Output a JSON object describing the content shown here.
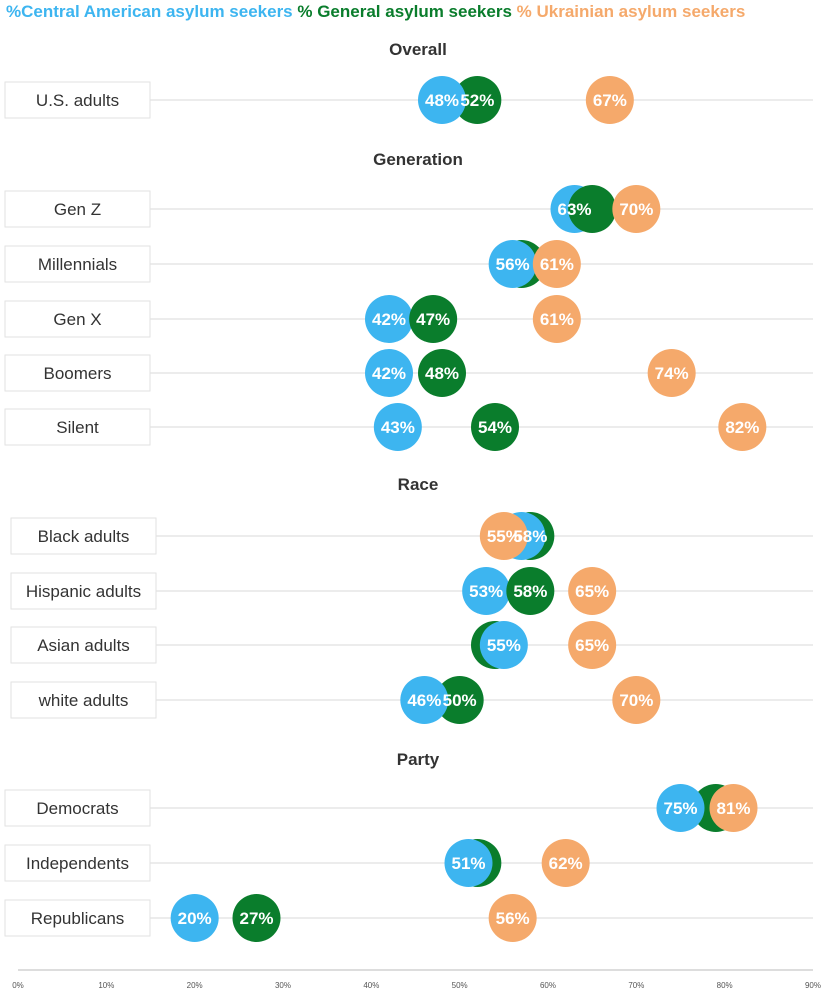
{
  "chart_data": {
    "type": "scatter",
    "title": "",
    "xlabel": "",
    "ylabel": "",
    "xlim": [
      0,
      90
    ],
    "x_ticks": [
      "0%",
      "10%",
      "20%",
      "30%",
      "40%",
      "50%",
      "60%",
      "70%",
      "80%",
      "90%"
    ],
    "legend": [
      {
        "key": "central",
        "label": "%Central American asylum seekers",
        "color": "#3db5f0"
      },
      {
        "key": "general",
        "label": "% General asylum seekers",
        "color": "#0a7d2c"
      },
      {
        "key": "ukrainian",
        "label": "% Ukrainian asylum seekers",
        "color": "#f5a96b"
      }
    ],
    "groups": [
      {
        "title": "Overall",
        "rows": [
          {
            "label": "U.S. adults",
            "central": 48,
            "general": 52,
            "ukrainian": 67
          }
        ]
      },
      {
        "title": "Generation",
        "rows": [
          {
            "label": "Gen Z",
            "central": 63,
            "general": 65,
            "ukrainian": 70
          },
          {
            "label": "Millennials",
            "central": 56,
            "general": 57,
            "ukrainian": 61
          },
          {
            "label": "Gen X",
            "central": 42,
            "general": 47,
            "ukrainian": 61
          },
          {
            "label": "Boomers",
            "central": 42,
            "general": 48,
            "ukrainian": 74
          },
          {
            "label": "Silent",
            "central": 43,
            "general": 54,
            "ukrainian": 82
          }
        ]
      },
      {
        "title": "Race",
        "rows": [
          {
            "label": "Black adults",
            "central": 57,
            "general": 58,
            "ukrainian": 55
          },
          {
            "label": "Hispanic adults",
            "central": 53,
            "general": 58,
            "ukrainian": 65
          },
          {
            "label": "Asian adults",
            "central": 55,
            "general": 54,
            "ukrainian": 65
          },
          {
            "label": "white adults",
            "central": 46,
            "general": 50,
            "ukrainian": 70
          }
        ]
      },
      {
        "title": "Party",
        "rows": [
          {
            "label": "Democrats",
            "central": 75,
            "general": 79,
            "ukrainian": 81
          },
          {
            "label": "Independents",
            "central": 51,
            "general": 52,
            "ukrainian": 62
          },
          {
            "label": "Republicans",
            "central": 20,
            "general": 27,
            "ukrainian": 56
          }
        ]
      }
    ]
  }
}
